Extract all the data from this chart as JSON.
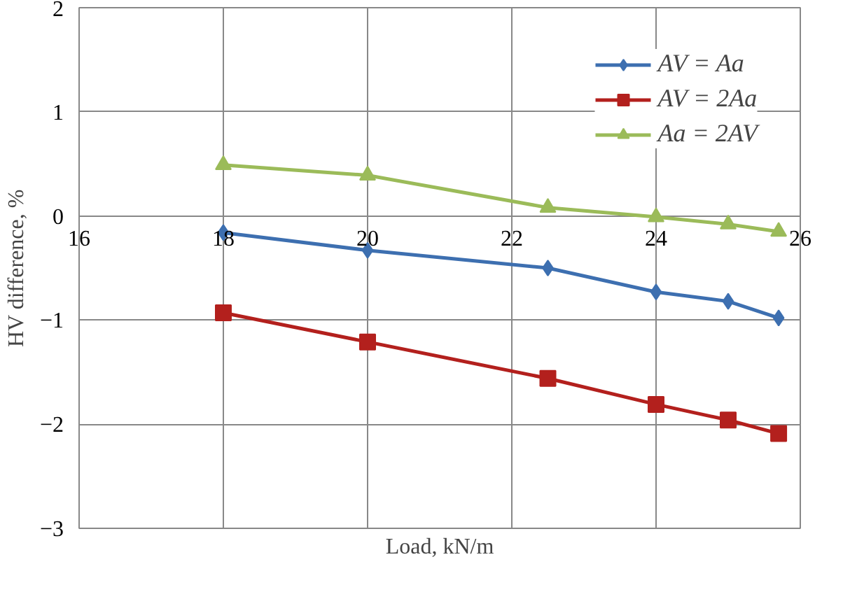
{
  "chart_data": {
    "type": "line",
    "xlabel": "Load, kN/m",
    "ylabel": "HV difference, %",
    "xlim": [
      16,
      26
    ],
    "ylim": [
      -3,
      2
    ],
    "xticks": [
      16,
      18,
      20,
      22,
      24,
      26
    ],
    "yticks": [
      {
        "value": -3,
        "label": "−3"
      },
      {
        "value": -2,
        "label": "−2"
      },
      {
        "value": -1,
        "label": "−1"
      },
      0,
      1,
      2
    ],
    "grid": true,
    "legend": "top right",
    "series": [
      {
        "name": "AV = Aa",
        "color": "#3d6fb0",
        "marker": "diamond",
        "x": [
          18,
          20,
          22.5,
          24,
          25,
          25.7
        ],
        "values": [
          -0.16,
          -0.33,
          -0.5,
          -0.73,
          -0.82,
          -0.98
        ]
      },
      {
        "name": "AV = 2Aa",
        "color": "#b3201d",
        "marker": "square",
        "x": [
          18,
          20,
          22.5,
          24,
          25,
          25.7
        ],
        "values": [
          -0.93,
          -1.21,
          -1.56,
          -1.81,
          -1.96,
          -2.09
        ]
      },
      {
        "name": "Aa = 2AV",
        "color": "#9bbb59",
        "marker": "triangle",
        "x": [
          18,
          20,
          22.5,
          24,
          25,
          25.7
        ],
        "values": [
          0.49,
          0.39,
          0.08,
          -0.01,
          -0.08,
          -0.15
        ]
      }
    ]
  }
}
